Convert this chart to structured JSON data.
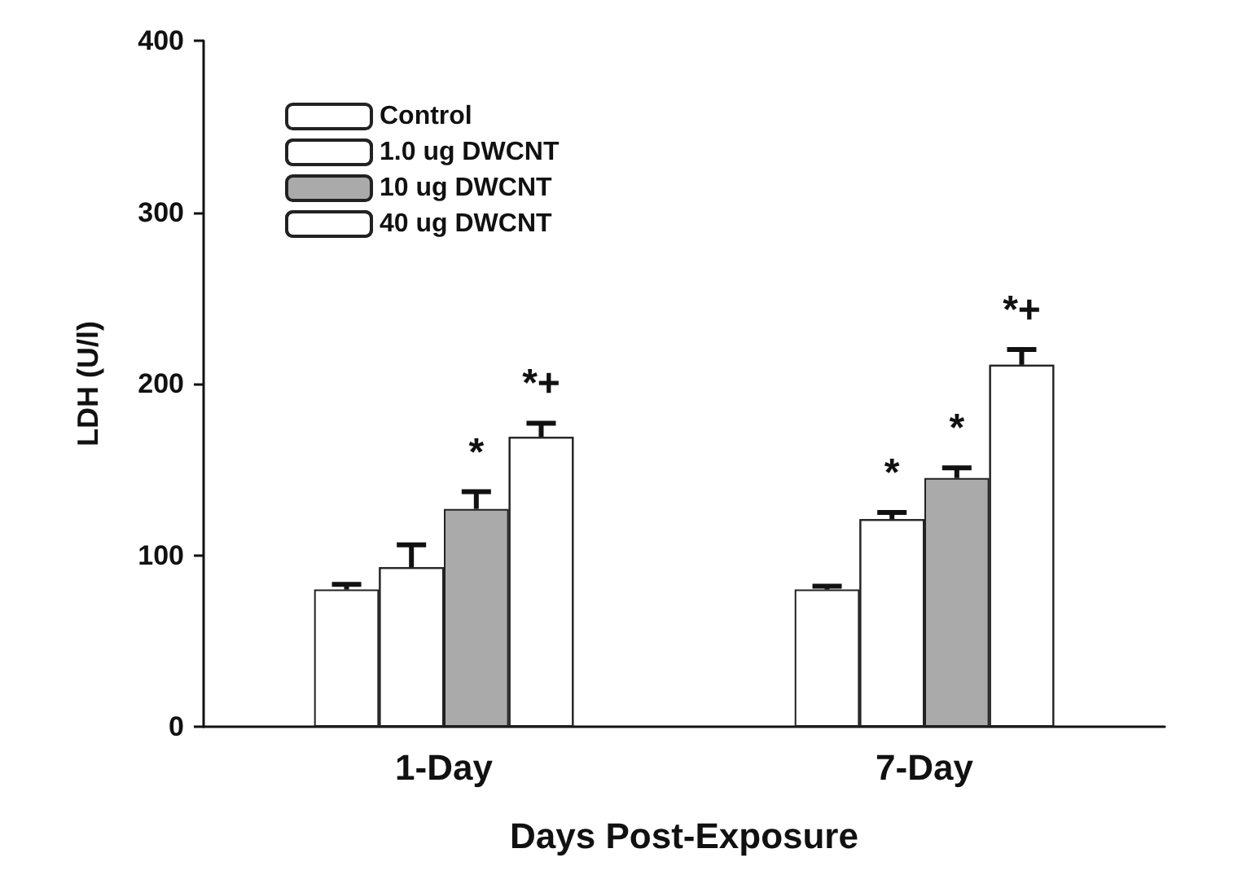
{
  "chart_data": {
    "type": "bar",
    "xlabel": "Days Post-Exposure",
    "ylabel": "LDH (U/l)",
    "categories": [
      "1-Day",
      "7-Day"
    ],
    "series": [
      {
        "name": "Control",
        "color": "#ffffff",
        "values": [
          80,
          80
        ],
        "errors": [
          [
            80,
            83
          ],
          [
            80,
            82
          ]
        ],
        "value_labels": [
          null,
          null
        ]
      },
      {
        "name": "1.0 ug DWCNT",
        "color": "#ffffff",
        "values": [
          93,
          121
        ],
        "errors": [
          [
            93,
            106
          ],
          [
            121,
            125
          ]
        ],
        "value_labels": [
          null,
          "*"
        ]
      },
      {
        "name": "10 ug DWCNT",
        "color": "#aaaaaa",
        "values": [
          127,
          145
        ],
        "errors": [
          [
            127,
            137
          ],
          [
            145,
            151
          ]
        ],
        "value_labels": [
          "*",
          "*"
        ]
      },
      {
        "name": "40 ug DWCNT",
        "color": "#ffffff",
        "values": [
          169,
          211
        ],
        "errors": [
          [
            169,
            177
          ],
          [
            211,
            220
          ]
        ],
        "value_labels": [
          "*+",
          "*+"
        ]
      }
    ],
    "ylim": [
      0,
      400
    ],
    "yticks": [
      0,
      100,
      200,
      300,
      400
    ],
    "grid": false,
    "legend": "top left"
  }
}
